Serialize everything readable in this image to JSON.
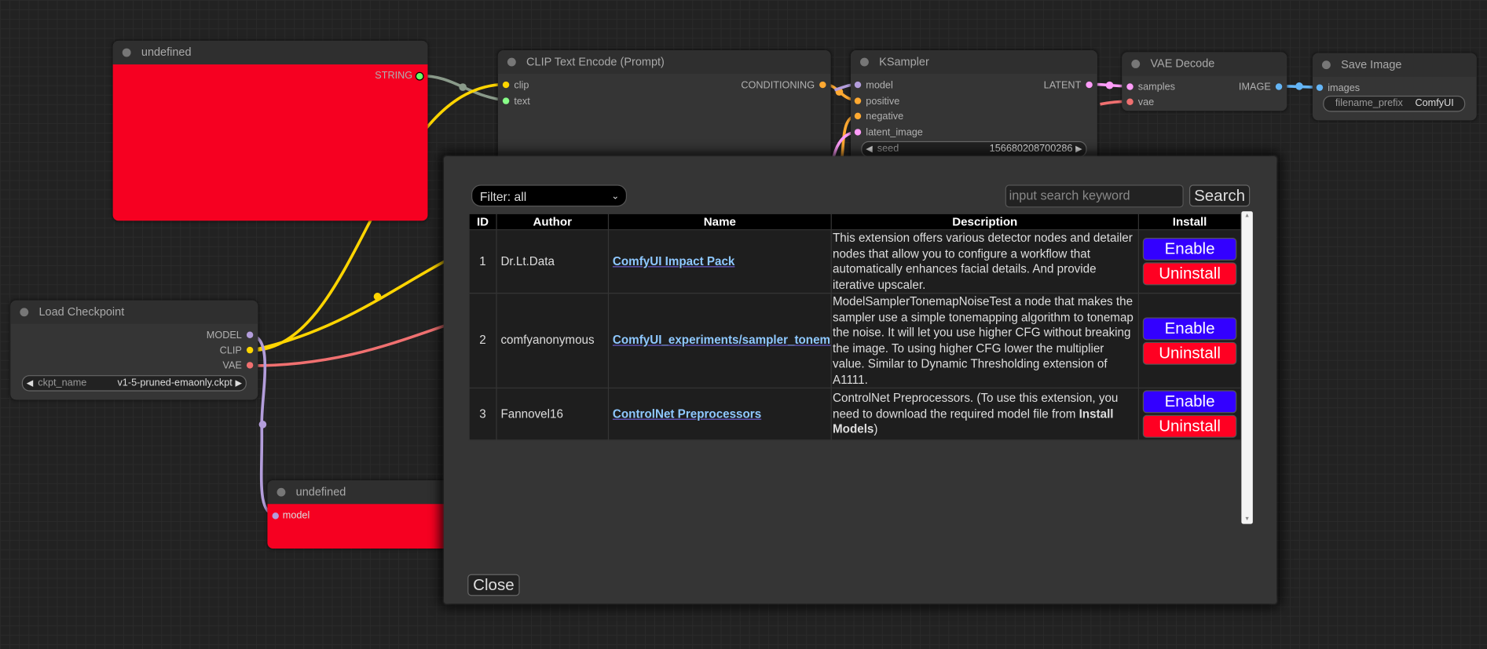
{
  "nodes": {
    "undefined_top": {
      "title": "undefined",
      "output": "STRING"
    },
    "clip_text_encode": {
      "title": "CLIP Text Encode (Prompt)",
      "inputs": [
        "clip",
        "text"
      ],
      "output": "CONDITIONING"
    },
    "ksampler": {
      "title": "KSampler",
      "inputs": [
        "model",
        "positive",
        "negative",
        "latent_image"
      ],
      "output": "LATENT",
      "seed_label": "seed",
      "seed_value": "156680208700286"
    },
    "vae_decode": {
      "title": "VAE Decode",
      "inputs": [
        "samples",
        "vae"
      ],
      "output": "IMAGE"
    },
    "save_image": {
      "title": "Save Image",
      "input": "images",
      "prefix_label": "filename_prefix",
      "prefix_value": "ComfyUI"
    },
    "load_checkpoint": {
      "title": "Load Checkpoint",
      "outputs": [
        "MODEL",
        "CLIP",
        "VAE"
      ],
      "ckpt_label": "ckpt_name",
      "ckpt_value": "v1-5-pruned-emaonly.ckpt"
    },
    "undefined_bottom": {
      "title": "undefined",
      "input": "model"
    }
  },
  "dialog": {
    "filter": "Filter: all",
    "search_placeholder": "input search keyword",
    "search_button": "Search",
    "columns": [
      "ID",
      "Author",
      "Name",
      "Description",
      "Install"
    ],
    "rows": [
      {
        "id": "1",
        "author": "Dr.Lt.Data",
        "name": "ComfyUI Impact Pack",
        "description": "This extension offers various detector nodes and detailer nodes that allow you to configure a workflow that automatically enhances facial details. And provide iterative upscaler.",
        "enable": "Enable",
        "uninstall": "Uninstall"
      },
      {
        "id": "2",
        "author": "comfyanonymous",
        "name": "ComfyUI_experiments/sampler_tonemap",
        "description": "ModelSamplerTonemapNoiseTest a node that makes the sampler use a simple tonemapping algorithm to tonemap the noise. It will let you use higher CFG without breaking the image. To using higher CFG lower the multiplier value. Similar to Dynamic Thresholding extension of A1111.",
        "enable": "Enable",
        "uninstall": "Uninstall"
      },
      {
        "id": "3",
        "author": "Fannovel16",
        "name": "ControlNet Preprocessors",
        "description": "ControlNet Preprocessors. (To use this extension, you need to download the required model file from ",
        "description_bold": "Install Models",
        "description_end": ")",
        "enable": "Enable",
        "uninstall": "Uninstall"
      }
    ],
    "close_button": "Close"
  },
  "colors": {
    "node_red": "#f60021",
    "enable": "#3300ff",
    "uninstall": "#ff0022",
    "link_name": "#8ec8ff"
  }
}
